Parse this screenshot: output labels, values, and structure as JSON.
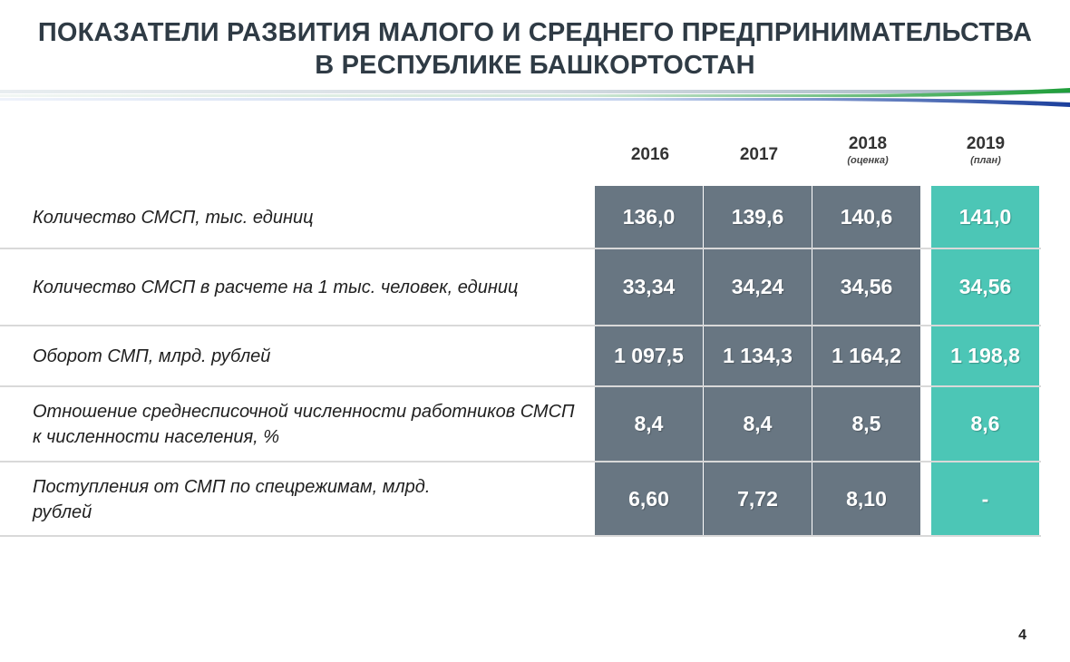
{
  "title": {
    "line1": "ПОКАЗАТЕЛИ  РАЗВИТИЯ  МАЛОГО И СРЕДНЕГО  ПРЕДПРИНИМАТЕЛЬСТВА",
    "line2": "В РЕСПУБЛИКЕ  БАШКОРТОСТАН"
  },
  "columns": [
    {
      "year": "2016",
      "note": ""
    },
    {
      "year": "2017",
      "note": ""
    },
    {
      "year": "2018",
      "note": "(оценка)"
    },
    {
      "year": "2019",
      "note": "(план)"
    }
  ],
  "rows": [
    {
      "label": "Количество СМСП, тыс.  единиц",
      "values": [
        "136,0",
        "139,6",
        "140,6",
        "141,0"
      ]
    },
    {
      "label": "Количество СМСП  в расчете на 1 тыс.  человек, единиц",
      "values": [
        "33,34",
        "34,24",
        "34,56",
        "34,56"
      ]
    },
    {
      "label": "Оборот СМП, млрд. рублей",
      "values": [
        "1 097,5",
        "1 134,3",
        "1 164,2",
        "1 198,8"
      ]
    },
    {
      "label": "Отношение среднесписочной численности работников СМСП к численности  населения, %",
      "values": [
        "8,4",
        "8,4",
        "8,5",
        "8,6"
      ]
    },
    {
      "label": "Поступления от  СМП по спецрежимам, млрд. рублей",
      "values": [
        "6,60",
        "7,72",
        "8,10",
        "-"
      ]
    }
  ],
  "colors": {
    "gray_cell": "#687682",
    "teal_cell": "#4cc6b6"
  },
  "page_number": "4"
}
